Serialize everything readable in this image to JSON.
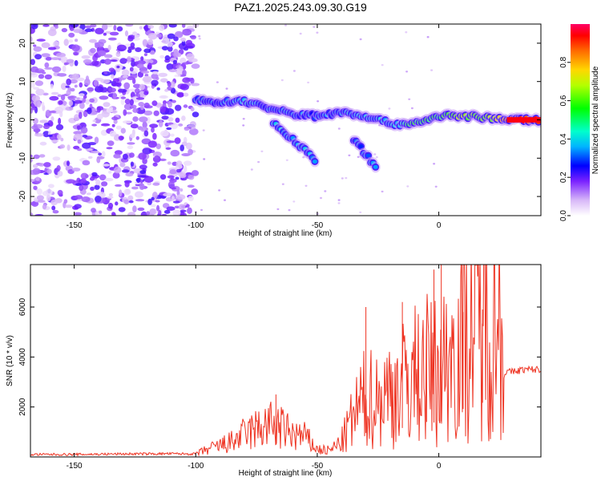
{
  "page_title": "PAZ1.2025.243.09.30.G19",
  "chart_data": [
    {
      "type": "heatmap",
      "title": "PAZ1.2025.243.09.30.G19",
      "xlabel": "Height of straight line (km)",
      "ylabel": "Frequency (Hz)",
      "xlim": [
        -168,
        42
      ],
      "ylim": [
        -25,
        25
      ],
      "xticks": [
        -150,
        -100,
        -50,
        0
      ],
      "yticks": [
        -20,
        -10,
        0,
        10,
        20
      ],
      "xtick_labels": [
        "-150",
        "-100",
        "-50",
        "0"
      ],
      "ytick_labels": [
        "-20",
        "-10",
        "0",
        "10",
        "20"
      ],
      "colorbar": {
        "label": "Normalized spectral amplitude",
        "range": [
          0,
          1
        ],
        "ticks": [
          0.0,
          0.2,
          0.4,
          0.6,
          0.8
        ],
        "tick_labels": [
          "0.0",
          "0.2",
          "0.4",
          "0.6",
          "0.8"
        ]
      },
      "features": [
        {
          "name": "noise-region",
          "x_range": [
            -168,
            -100
          ],
          "y_range": [
            -25,
            25
          ],
          "amplitude": 0.2
        },
        {
          "name": "main-branch",
          "points": [
            [
              -100,
              5
            ],
            [
              -90,
              4.5
            ],
            [
              -80,
              5
            ],
            [
              -70,
              3
            ],
            [
              -60,
              1.5
            ],
            [
              -50,
              1
            ],
            [
              -40,
              2
            ],
            [
              -30,
              1
            ],
            [
              -20,
              -1
            ],
            [
              -10,
              -1
            ],
            [
              0,
              1
            ],
            [
              10,
              1
            ],
            [
              20,
              0.5
            ],
            [
              30,
              0
            ],
            [
              42,
              0
            ]
          ],
          "amplitude": [
            0.3,
            0.3,
            0.35,
            0.3,
            0.3,
            0.3,
            0.35,
            0.35,
            0.35,
            0.55,
            0.5,
            0.65,
            0.6,
            0.9,
            0.95
          ]
        },
        {
          "name": "branch-1",
          "points": [
            [
              -68,
              -1
            ],
            [
              -60,
              -5
            ],
            [
              -50,
              -11
            ]
          ],
          "amplitude": 0.35
        },
        {
          "name": "branch-2",
          "points": [
            [
              -35,
              -5
            ],
            [
              -25,
              -13
            ]
          ],
          "amplitude": 0.3
        }
      ]
    },
    {
      "type": "line",
      "xlabel": "Height of straight line (km)",
      "ylabel": "SNR (10 * v/v)",
      "xlim": [
        -168,
        42
      ],
      "ylim": [
        0,
        7700
      ],
      "xticks": [
        -150,
        -100,
        -50,
        0
      ],
      "yticks": [
        2000,
        4000,
        6000
      ],
      "xtick_labels": [
        "-150",
        "-100",
        "-50",
        "0"
      ],
      "ytick_labels": [
        "2000",
        "4000",
        "6000"
      ],
      "series": [
        {
          "name": "SNR",
          "color": "#ee3322",
          "x": [
            -168,
            -150,
            -130,
            -110,
            -100,
            -95,
            -90,
            -85,
            -80,
            -75,
            -70,
            -65,
            -60,
            -55,
            -50,
            -45,
            -40,
            -35,
            -30,
            -25,
            -20,
            -15,
            -10,
            -5,
            0,
            5,
            10,
            15,
            20,
            25,
            27,
            30,
            35,
            42
          ],
          "y": [
            100,
            100,
            120,
            130,
            120,
            300,
            450,
            600,
            900,
            1100,
            1300,
            1150,
            900,
            800,
            300,
            250,
            600,
            1600,
            2400,
            2300,
            2600,
            2900,
            3300,
            3500,
            3400,
            4100,
            4800,
            5300,
            5500,
            5700,
            3400,
            3400,
            3500,
            3500
          ]
        }
      ],
      "spikes": [
        [
          -67,
          2500
        ],
        [
          -30,
          6000
        ],
        [
          -15,
          6200
        ],
        [
          -5,
          5500
        ],
        [
          -2,
          7500
        ],
        [
          1,
          7700
        ],
        [
          10,
          5800
        ],
        [
          18,
          5900
        ]
      ]
    }
  ]
}
